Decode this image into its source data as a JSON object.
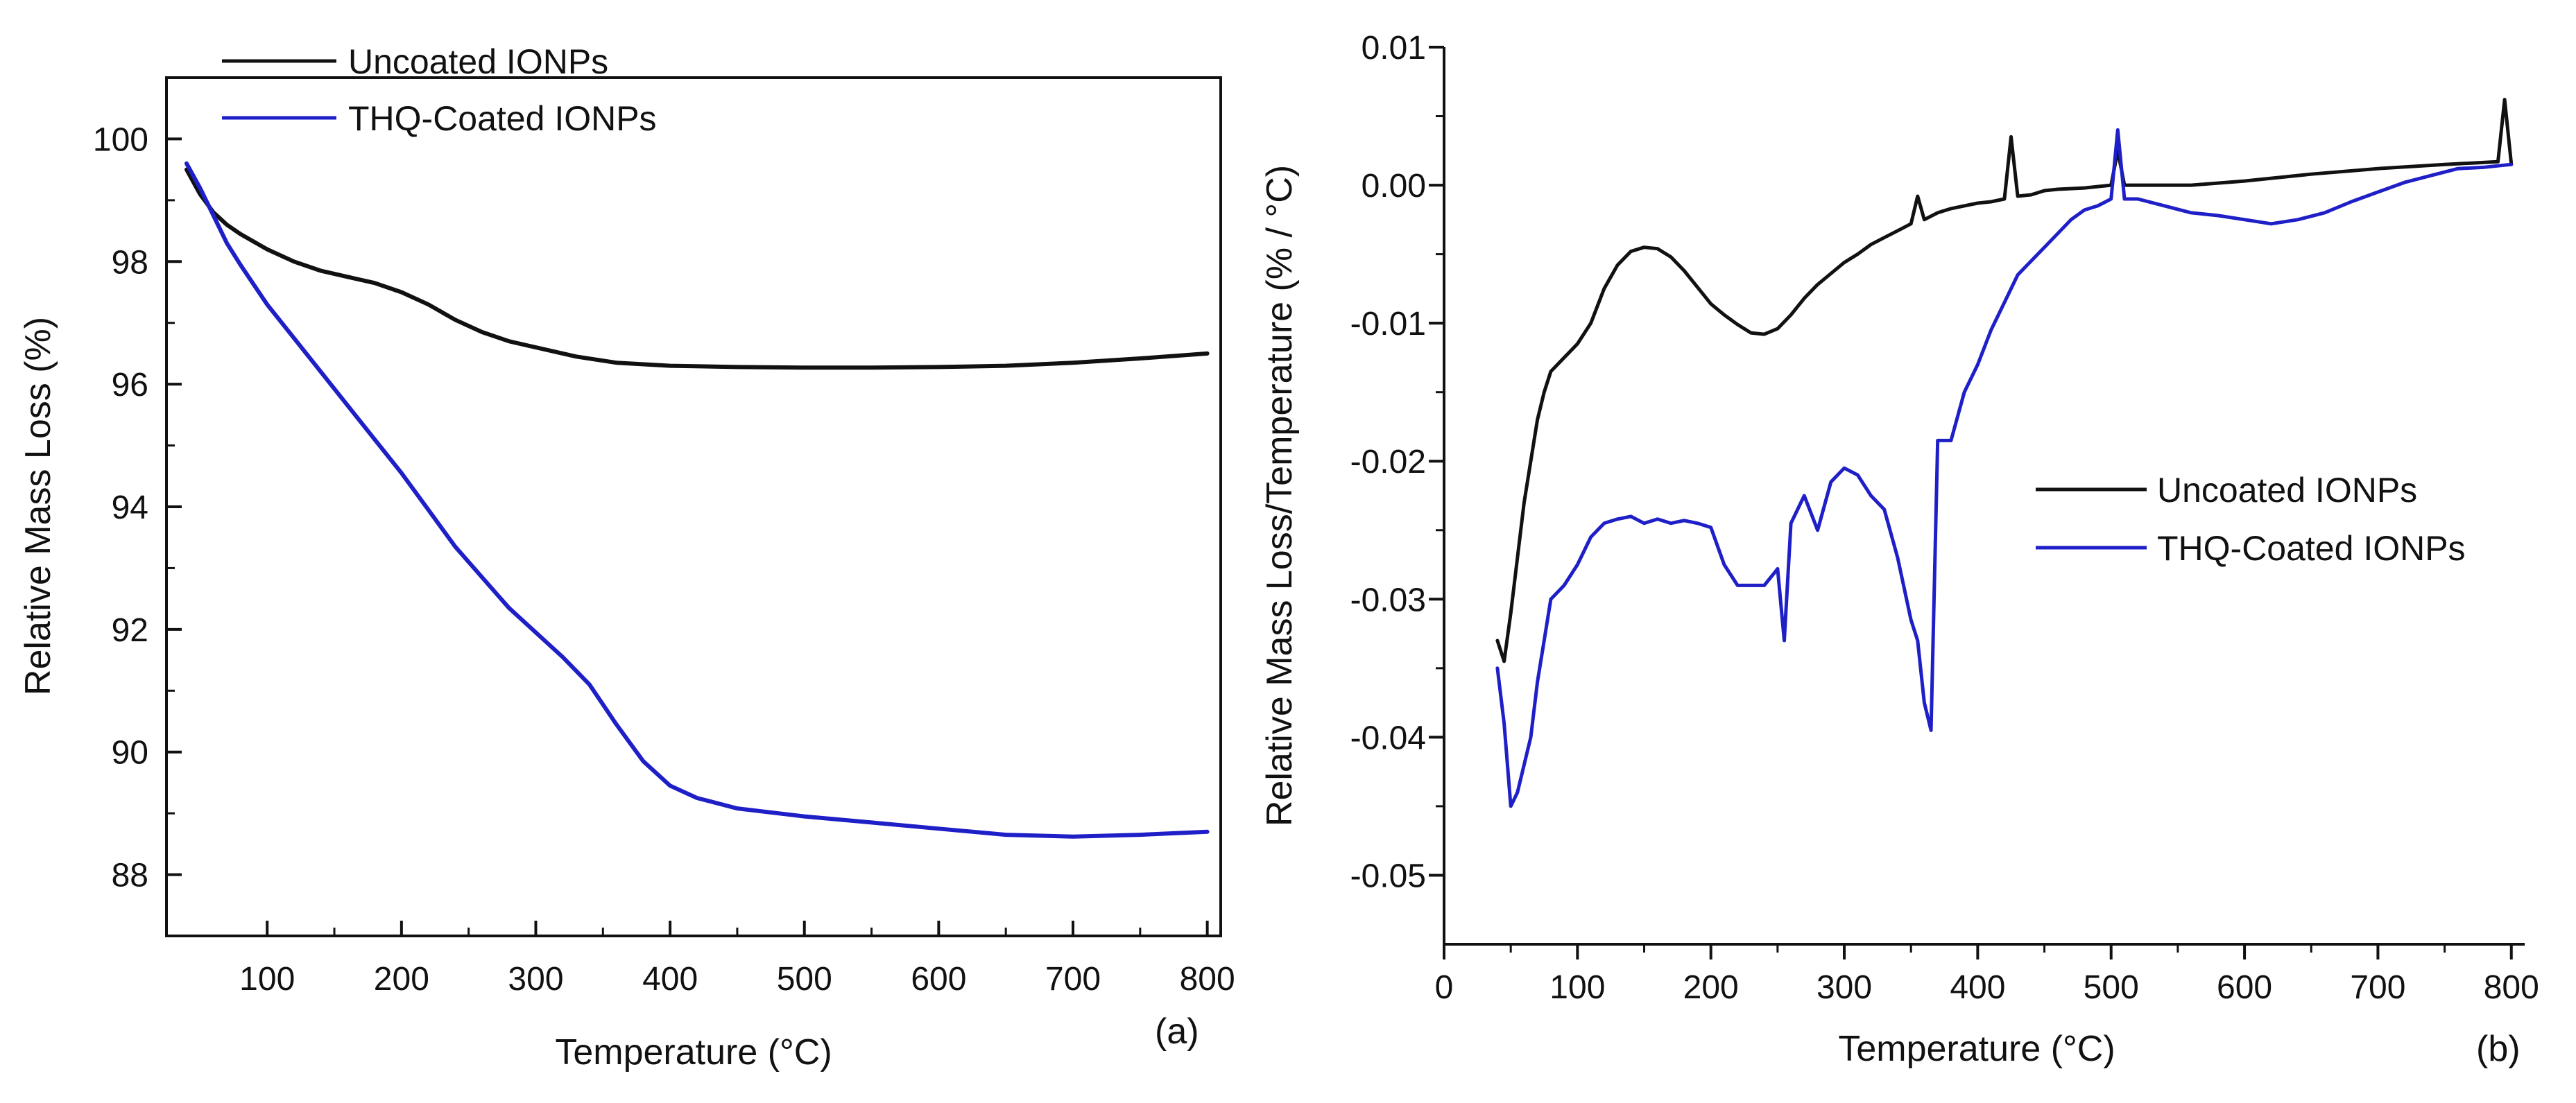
{
  "chart_data": [
    {
      "type": "line",
      "panel_label": "(a)",
      "xlabel": "Temperature (°C)",
      "ylabel": "Relative Mass Loss (%)",
      "xlim": [
        25,
        810
      ],
      "ylim": [
        87,
        101
      ],
      "xticks": [
        100,
        200,
        300,
        400,
        500,
        600,
        700,
        800
      ],
      "yticks": [
        88,
        90,
        92,
        94,
        96,
        98,
        100
      ],
      "legend_position": "top-left",
      "series": [
        {
          "name": "Uncoated IONPs",
          "color": "#111111",
          "x": [
            40,
            50,
            60,
            70,
            80,
            100,
            120,
            140,
            160,
            180,
            200,
            220,
            240,
            260,
            280,
            300,
            330,
            360,
            400,
            450,
            500,
            550,
            600,
            650,
            700,
            750,
            800
          ],
          "y": [
            99.5,
            99.1,
            98.8,
            98.6,
            98.45,
            98.2,
            98.0,
            97.85,
            97.75,
            97.65,
            97.5,
            97.3,
            97.05,
            96.85,
            96.7,
            96.6,
            96.45,
            96.35,
            96.3,
            96.28,
            96.27,
            96.27,
            96.28,
            96.3,
            96.35,
            96.42,
            96.5
          ]
        },
        {
          "name": "THQ-Coated IONPs",
          "color": "#1f1fc8",
          "x": [
            40,
            50,
            60,
            70,
            80,
            100,
            120,
            140,
            160,
            180,
            200,
            220,
            240,
            260,
            280,
            300,
            320,
            340,
            360,
            380,
            400,
            420,
            450,
            500,
            550,
            600,
            650,
            700,
            750,
            800
          ],
          "y": [
            99.6,
            99.2,
            98.75,
            98.3,
            97.95,
            97.3,
            96.75,
            96.2,
            95.65,
            95.1,
            94.55,
            93.95,
            93.35,
            92.85,
            92.35,
            91.95,
            91.55,
            91.1,
            90.45,
            89.85,
            89.45,
            89.25,
            89.08,
            88.95,
            88.85,
            88.75,
            88.65,
            88.62,
            88.65,
            88.7
          ]
        }
      ]
    },
    {
      "type": "line",
      "panel_label": "(b)",
      "xlabel": "Temperature (°C)",
      "ylabel": "Relative Mass Loss/Temperature (% / °C)",
      "xlim": [
        0,
        810
      ],
      "ylim": [
        -0.055,
        0.01
      ],
      "xticks": [
        0,
        100,
        200,
        300,
        400,
        500,
        600,
        700,
        800
      ],
      "yticks": [
        -0.05,
        -0.04,
        -0.03,
        -0.02,
        -0.01,
        0.0,
        0.01
      ],
      "ytick_labels": [
        "-0.05",
        "-0.04",
        "-0.03",
        "-0.02",
        "-0.01",
        "0.00",
        "0.01"
      ],
      "legend_position": "center-right",
      "series": [
        {
          "name": "Uncoated IONPs",
          "color": "#111111",
          "x": [
            40,
            45,
            50,
            55,
            60,
            65,
            70,
            75,
            80,
            90,
            100,
            110,
            120,
            130,
            140,
            150,
            160,
            170,
            180,
            190,
            200,
            210,
            220,
            230,
            240,
            250,
            260,
            270,
            280,
            290,
            300,
            310,
            320,
            330,
            340,
            350,
            355,
            360,
            370,
            380,
            390,
            400,
            410,
            420,
            425,
            430,
            440,
            450,
            460,
            480,
            500,
            505,
            510,
            540,
            560,
            600,
            650,
            700,
            750,
            790,
            795,
            800
          ],
          "y": [
            -0.033,
            -0.0345,
            -0.031,
            -0.027,
            -0.023,
            -0.02,
            -0.017,
            -0.015,
            -0.0135,
            -0.0125,
            -0.0115,
            -0.01,
            -0.0075,
            -0.0058,
            -0.0048,
            -0.0045,
            -0.0046,
            -0.0052,
            -0.0062,
            -0.0074,
            -0.0086,
            -0.0094,
            -0.0101,
            -0.0107,
            -0.0108,
            -0.0104,
            -0.0094,
            -0.0082,
            -0.0072,
            -0.0064,
            -0.0056,
            -0.005,
            -0.0043,
            -0.0038,
            -0.0033,
            -0.0028,
            -0.0008,
            -0.0025,
            -0.002,
            -0.0017,
            -0.0015,
            -0.0013,
            -0.0012,
            -0.001,
            0.0035,
            -0.0008,
            -0.0007,
            -0.0004,
            -0.0003,
            -0.0002,
            0.0,
            0.0025,
            0.0,
            0.0,
            0.0,
            0.0003,
            0.0008,
            0.0012,
            0.0015,
            0.0017,
            0.0062,
            0.0015
          ]
        },
        {
          "name": "THQ-Coated IONPs",
          "color": "#1f1fc8",
          "x": [
            40,
            45,
            50,
            55,
            60,
            65,
            70,
            75,
            80,
            90,
            100,
            110,
            120,
            130,
            140,
            150,
            160,
            170,
            180,
            190,
            200,
            210,
            220,
            230,
            240,
            250,
            255,
            260,
            270,
            280,
            290,
            300,
            310,
            320,
            330,
            340,
            350,
            355,
            360,
            365,
            370,
            380,
            390,
            400,
            410,
            420,
            430,
            440,
            450,
            460,
            470,
            480,
            490,
            500,
            505,
            510,
            520,
            540,
            560,
            580,
            600,
            620,
            640,
            660,
            680,
            700,
            720,
            740,
            760,
            780,
            800
          ],
          "y": [
            -0.035,
            -0.039,
            -0.045,
            -0.044,
            -0.042,
            -0.04,
            -0.036,
            -0.033,
            -0.03,
            -0.029,
            -0.0275,
            -0.0255,
            -0.0245,
            -0.0242,
            -0.024,
            -0.0245,
            -0.0242,
            -0.0245,
            -0.0243,
            -0.0245,
            -0.0248,
            -0.0275,
            -0.029,
            -0.029,
            -0.029,
            -0.0278,
            -0.033,
            -0.0245,
            -0.0225,
            -0.025,
            -0.0215,
            -0.0205,
            -0.021,
            -0.0225,
            -0.0235,
            -0.027,
            -0.0315,
            -0.033,
            -0.0375,
            -0.0395,
            -0.0185,
            -0.0185,
            -0.015,
            -0.013,
            -0.0105,
            -0.0085,
            -0.0065,
            -0.0055,
            -0.0045,
            -0.0035,
            -0.0025,
            -0.0018,
            -0.0015,
            -0.001,
            0.004,
            -0.001,
            -0.001,
            -0.0015,
            -0.002,
            -0.0022,
            -0.0025,
            -0.0028,
            -0.0025,
            -0.002,
            -0.0012,
            -0.0005,
            0.0002,
            0.0007,
            0.0012,
            0.0013,
            0.0015
          ]
        }
      ]
    }
  ]
}
